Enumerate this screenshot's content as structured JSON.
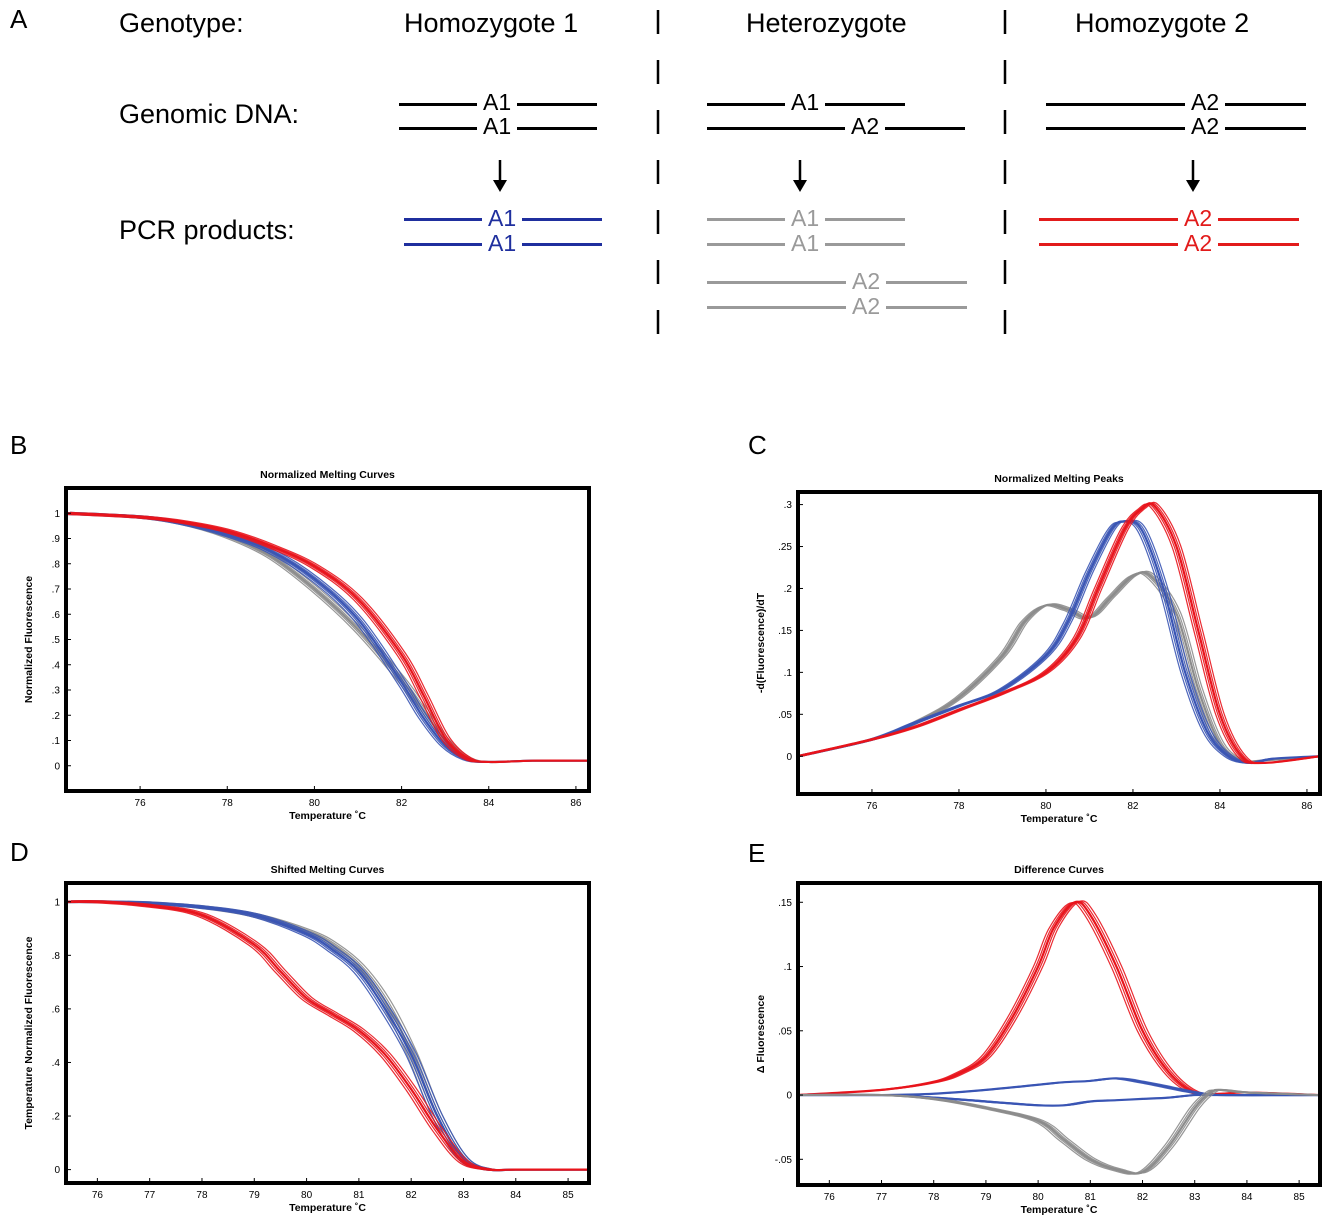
{
  "panel_a": {
    "letter": "A",
    "genotype_label": "Genotype:",
    "genomic_label": "Genomic DNA:",
    "pcr_label": "PCR products:",
    "columns": [
      {
        "title": "Homozygote 1",
        "genomic": [
          "A1",
          "A1"
        ],
        "pcr": [
          "A1",
          "A1"
        ],
        "pcr_color": "#1f2f9e"
      },
      {
        "title": "Heterozygote",
        "genomic": [
          "A1",
          "A2"
        ],
        "pcr": [
          "A1",
          "A1",
          "A2",
          "A2"
        ],
        "pcr_color": "#9a9a9a"
      },
      {
        "title": "Homozygote 2",
        "genomic": [
          "A2",
          "A2"
        ],
        "pcr": [
          "A2",
          "A2"
        ],
        "pcr_color": "#e21b1b"
      }
    ]
  },
  "colors": {
    "blue": "#3a55b4",
    "red": "#e8141c",
    "gray": "#8c8c8c"
  },
  "chart_data": [
    {
      "letter": "B",
      "type": "line",
      "title": "Normalized Melting Curves",
      "xlabel": "Temperature ˚C",
      "ylabel": "Normalized Fluorescence",
      "xlim": [
        74.3,
        86.3
      ],
      "ylim": [
        -0.1,
        1.1
      ],
      "xticks": [
        76,
        78,
        80,
        82,
        84,
        86
      ],
      "yticks": [
        0,
        0.1,
        0.2,
        0.3,
        0.4,
        0.5,
        0.6,
        0.7,
        0.8,
        0.9,
        1
      ],
      "series": [
        {
          "color": "gray",
          "x": [
            74.3,
            76,
            77,
            78,
            79,
            80,
            81,
            82,
            82.5,
            83,
            83.5,
            84,
            85,
            86.3
          ],
          "y": [
            1,
            0.985,
            0.96,
            0.91,
            0.83,
            0.7,
            0.54,
            0.34,
            0.22,
            0.1,
            0.03,
            0.015,
            0.02,
            0.02
          ]
        },
        {
          "color": "blue",
          "x": [
            74.3,
            76,
            77,
            78,
            79,
            80,
            81,
            82,
            82.5,
            83,
            83.5,
            84,
            85,
            86.3
          ],
          "y": [
            1,
            0.985,
            0.96,
            0.915,
            0.85,
            0.74,
            0.58,
            0.33,
            0.19,
            0.08,
            0.025,
            0.015,
            0.02,
            0.02
          ]
        },
        {
          "color": "red",
          "x": [
            74.3,
            76,
            77,
            78,
            79,
            80,
            81,
            82,
            82.5,
            83,
            83.5,
            84,
            85,
            86.3
          ],
          "y": [
            1,
            0.985,
            0.965,
            0.93,
            0.87,
            0.79,
            0.66,
            0.44,
            0.28,
            0.11,
            0.03,
            0.015,
            0.02,
            0.02
          ]
        }
      ]
    },
    {
      "letter": "C",
      "type": "line",
      "title": "Normalized Melting Peaks",
      "xlabel": "Temperature ˚C",
      "ylabel": "-d(Fluorescence)/dT",
      "xlim": [
        74.3,
        86.3
      ],
      "ylim": [
        -0.045,
        0.315
      ],
      "xticks": [
        76,
        78,
        80,
        82,
        84,
        86
      ],
      "yticks": [
        0,
        0.05,
        0.1,
        0.15,
        0.2,
        0.25,
        0.3
      ],
      "series": [
        {
          "color": "gray",
          "x": [
            74.3,
            76,
            77,
            78,
            79,
            79.5,
            80,
            80.5,
            81,
            81.5,
            82,
            82.4,
            83,
            83.5,
            84,
            84.5,
            85,
            86.3
          ],
          "y": [
            0,
            0.02,
            0.04,
            0.07,
            0.12,
            0.16,
            0.18,
            0.175,
            0.165,
            0.19,
            0.215,
            0.215,
            0.17,
            0.08,
            0.015,
            -0.005,
            -0.005,
            0
          ]
        },
        {
          "color": "blue",
          "x": [
            74.3,
            76,
            77,
            78,
            79,
            80,
            80.5,
            81,
            81.5,
            81.8,
            82.2,
            82.7,
            83.2,
            83.7,
            84.2,
            84.7,
            85.2,
            86.3
          ],
          "y": [
            0,
            0.02,
            0.04,
            0.06,
            0.08,
            0.12,
            0.16,
            0.22,
            0.27,
            0.28,
            0.27,
            0.2,
            0.1,
            0.03,
            0,
            -0.008,
            -0.003,
            0
          ]
        },
        {
          "color": "red",
          "x": [
            74.3,
            76,
            77,
            78,
            79,
            80,
            80.7,
            81.2,
            81.8,
            82.2,
            82.5,
            83,
            83.5,
            84,
            84.5,
            85,
            86.3
          ],
          "y": [
            0,
            0.02,
            0.035,
            0.055,
            0.075,
            0.1,
            0.14,
            0.2,
            0.27,
            0.295,
            0.298,
            0.25,
            0.15,
            0.05,
            0,
            -0.008,
            0
          ]
        }
      ]
    },
    {
      "letter": "D",
      "type": "line",
      "title": "Shifted Melting Curves",
      "xlabel": "Temperature ˚C",
      "ylabel": "Temperature Normalized Fluorescence",
      "xlim": [
        75.4,
        85.4
      ],
      "ylim": [
        -0.05,
        1.07
      ],
      "xticks": [
        76,
        77,
        78,
        79,
        80,
        81,
        82,
        83,
        84,
        85
      ],
      "yticks": [
        0,
        0.2,
        0.4,
        0.6,
        0.8,
        1
      ],
      "series": [
        {
          "color": "gray",
          "x": [
            75.4,
            76,
            77,
            78,
            79,
            80,
            80.5,
            81,
            81.5,
            82,
            82.5,
            83,
            83.5,
            84,
            85.4
          ],
          "y": [
            1,
            1,
            0.995,
            0.98,
            0.95,
            0.89,
            0.84,
            0.76,
            0.63,
            0.44,
            0.2,
            0.04,
            0,
            0,
            0
          ]
        },
        {
          "color": "blue",
          "x": [
            75.4,
            76,
            77,
            78,
            79,
            80,
            80.5,
            81,
            81.5,
            82,
            82.5,
            83,
            83.5,
            84,
            85.4
          ],
          "y": [
            1,
            1,
            0.995,
            0.98,
            0.95,
            0.88,
            0.82,
            0.74,
            0.6,
            0.43,
            0.2,
            0.04,
            0,
            0,
            0
          ]
        },
        {
          "color": "red",
          "x": [
            75.4,
            76,
            77,
            78,
            79,
            79.5,
            80,
            80.5,
            81,
            81.5,
            82,
            82.5,
            83,
            83.5,
            84,
            85.4
          ],
          "y": [
            1,
            1,
            0.985,
            0.95,
            0.84,
            0.74,
            0.64,
            0.58,
            0.52,
            0.43,
            0.3,
            0.15,
            0.03,
            0,
            0,
            0
          ]
        }
      ]
    },
    {
      "letter": "E",
      "type": "line",
      "title": "Difference Curves",
      "xlabel": "Temperature ˚C",
      "ylabel": "Δ Fluorescence",
      "xlim": [
        75.4,
        85.4
      ],
      "ylim": [
        -0.07,
        0.165
      ],
      "xticks": [
        76,
        77,
        78,
        79,
        80,
        81,
        82,
        83,
        84,
        85
      ],
      "yticks": [
        -0.05,
        0,
        0.05,
        0.1,
        0.15
      ],
      "series": [
        {
          "color": "red",
          "x": [
            75.4,
            77,
            78,
            78.5,
            79,
            79.5,
            80,
            80.3,
            80.7,
            81,
            81.5,
            82,
            82.5,
            83,
            83.5,
            84,
            85.4
          ],
          "y": [
            0,
            0.004,
            0.01,
            0.017,
            0.03,
            0.06,
            0.1,
            0.13,
            0.15,
            0.14,
            0.1,
            0.05,
            0.018,
            0.002,
            0.001,
            0.002,
            0
          ]
        },
        {
          "color": "blue",
          "x": [
            75.4,
            77,
            78,
            79,
            80,
            80.5,
            81,
            81.5,
            82,
            82.5,
            83,
            83.5,
            85.4
          ],
          "y": [
            0,
            0,
            -0.002,
            -0.005,
            -0.008,
            -0.008,
            -0.005,
            -0.004,
            -0.003,
            -0.002,
            0,
            0,
            0
          ]
        },
        {
          "color": "blue",
          "x": [
            75.4,
            77,
            78,
            79,
            80,
            80.5,
            81,
            81.5,
            82,
            82.5,
            83,
            83.5,
            85.4
          ],
          "y": [
            0,
            0,
            0.001,
            0.004,
            0.008,
            0.01,
            0.011,
            0.013,
            0.01,
            0.006,
            0.002,
            0,
            0
          ]
        },
        {
          "color": "gray",
          "x": [
            75.4,
            77,
            78,
            79,
            80,
            80.5,
            81,
            81.5,
            82,
            82.5,
            83,
            83.3,
            83.5,
            84,
            85.4
          ],
          "y": [
            0,
            0,
            -0.003,
            -0.01,
            -0.02,
            -0.035,
            -0.05,
            -0.058,
            -0.06,
            -0.04,
            -0.01,
            0.002,
            0.004,
            0.002,
            0
          ]
        }
      ]
    }
  ]
}
